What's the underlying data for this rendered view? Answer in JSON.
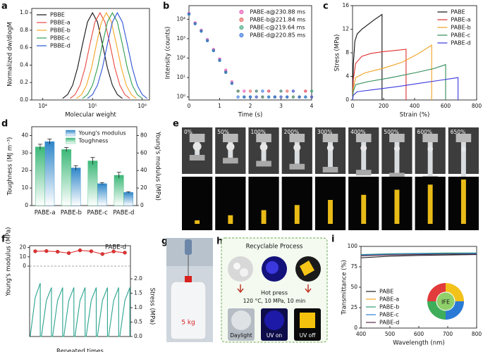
{
  "chart_data": [
    {
      "panel": "a",
      "type": "line",
      "x_label": "Molecular weight",
      "y_label": "Normalized dw/dlogM",
      "xscale": "log",
      "xlim": [
        6000,
        1400000
      ],
      "xticks": [
        {
          "value": 10000,
          "label": "10⁴"
        },
        {
          "value": 100000,
          "label": "10⁵"
        },
        {
          "value": 1000000,
          "label": "10⁶"
        }
      ],
      "ylim": [
        0,
        1.05
      ],
      "yticks": [
        {
          "value": 0,
          "label": "0.0"
        },
        0.2,
        0.4,
        0.6,
        0.8,
        {
          "value": 1,
          "label": "1.0"
        }
      ],
      "legend": "upper-left",
      "series": [
        {
          "name": "PBBE",
          "color": "#111111",
          "x": [
            25100,
            31600,
            39800,
            50100,
            63100,
            79400,
            100000,
            125900,
            158500,
            199500,
            251200,
            316200,
            398100
          ],
          "values": [
            0.018,
            0.062,
            0.169,
            0.368,
            0.641,
            0.895,
            1,
            0.895,
            0.641,
            0.368,
            0.169,
            0.062,
            0.018
          ]
        },
        {
          "name": "PBBE-a",
          "color": "#e8473f",
          "x": [
            35500,
            44700,
            56200,
            70800,
            89100,
            112200,
            141300,
            177800,
            223900,
            281800,
            354800,
            446700,
            562300
          ],
          "values": [
            0.018,
            0.062,
            0.169,
            0.368,
            0.641,
            0.895,
            1,
            0.895,
            0.641,
            0.368,
            0.169,
            0.062,
            0.018
          ]
        },
        {
          "name": "PBBE-b",
          "color": "#f5a623",
          "x": [
            47900,
            60300,
            75900,
            95500,
            120200,
            151400,
            190500,
            239900,
            302000,
            380200,
            478600,
            602600,
            758600
          ],
          "values": [
            0.018,
            0.062,
            0.169,
            0.368,
            0.641,
            0.895,
            1,
            0.895,
            0.641,
            0.368,
            0.169,
            0.062,
            0.018
          ]
        },
        {
          "name": "PBBE-c",
          "color": "#2e9e4f",
          "x": [
            63100,
            79400,
            100000,
            125900,
            158500,
            199500,
            251200,
            316200,
            398100,
            501200,
            631000,
            794300,
            1000000
          ],
          "values": [
            0.018,
            0.062,
            0.169,
            0.368,
            0.641,
            0.895,
            1,
            0.895,
            0.641,
            0.368,
            0.169,
            0.062,
            0.018
          ]
        },
        {
          "name": "PBBE-d",
          "color": "#2c55d6",
          "x": [
            79400,
            100000,
            125900,
            158500,
            199500,
            251200,
            316200,
            398100,
            501200,
            631000,
            794300,
            1000000,
            1258900
          ],
          "values": [
            0.018,
            0.062,
            0.169,
            0.368,
            0.641,
            0.895,
            1,
            0.895,
            0.641,
            0.368,
            0.169,
            0.062,
            0.018
          ]
        }
      ]
    },
    {
      "panel": "b",
      "type": "scatter",
      "x_label": "Time (s)",
      "y_label": "Intensity (counts)",
      "x": [
        0,
        0.2,
        0.4,
        0.6,
        0.8,
        1.0,
        1.2,
        1.4,
        1.6,
        1.8,
        2.0,
        2.2,
        2.4,
        2.6,
        2.8,
        3.0,
        3.2,
        3.4,
        3.6,
        3.8,
        4.0
      ],
      "xlim": [
        0,
        4
      ],
      "xticks": [
        0,
        1,
        2,
        3,
        4
      ],
      "yscale": "log",
      "ylim": [
        0.7,
        50000
      ],
      "yticks": [
        {
          "value": 1,
          "label": "10⁰"
        },
        {
          "value": 10,
          "label": "10¹"
        },
        {
          "value": 100,
          "label": "10²"
        },
        {
          "value": 1000,
          "label": "10³"
        },
        {
          "value": 10000,
          "label": "10⁴"
        }
      ],
      "legend": "upper-right",
      "series": [
        {
          "name": "PABE-a@230.88 ms",
          "color": "#e64fb0",
          "values": [
            20000,
            6500,
            2700,
            900,
            280,
            90,
            24,
            6,
            2,
            2,
            1,
            2,
            1,
            2,
            1,
            2,
            1,
            2,
            1,
            2,
            1
          ]
        },
        {
          "name": "PABE-b@221.84 ms",
          "color": "#e8605a",
          "values": [
            19000,
            6000,
            2500,
            800,
            250,
            80,
            20,
            5,
            2,
            1,
            2,
            1,
            1,
            2,
            1,
            1,
            2,
            1,
            1,
            2,
            1
          ]
        },
        {
          "name": "PABE-c@219.64 ms",
          "color": "#3aa67a",
          "values": [
            18000,
            5800,
            2400,
            780,
            240,
            75,
            18,
            5,
            2,
            1,
            1,
            2,
            1,
            1,
            1,
            2,
            1,
            1,
            1,
            1,
            2
          ]
        },
        {
          "name": "PABE-d@220.85 ms",
          "color": "#2e6fe0",
          "values": [
            18500,
            5900,
            2450,
            790,
            245,
            78,
            19,
            5,
            1,
            1,
            1,
            1,
            2,
            1,
            1,
            1,
            1,
            2,
            1,
            1,
            1
          ]
        }
      ]
    },
    {
      "panel": "c",
      "type": "line",
      "x_label": "Strain (%)",
      "y_label": "Stress (MPa)",
      "xlim": [
        0,
        800
      ],
      "xticks": [
        0,
        200,
        400,
        600,
        800
      ],
      "ylim": [
        0,
        16
      ],
      "yticks": [
        0,
        4,
        8,
        12,
        16
      ],
      "legend": "upper-right",
      "series": [
        {
          "name": "PABE",
          "color": "#111111",
          "x": [
            0,
            5,
            15,
            30,
            60,
            100,
            140,
            190,
            190
          ],
          "values": [
            0,
            6,
            10,
            11.2,
            12,
            12.8,
            13.6,
            14.5,
            0
          ]
        },
        {
          "name": "PABE-a",
          "color": "#e03030",
          "x": [
            0,
            5,
            20,
            60,
            120,
            200,
            280,
            345,
            345
          ],
          "values": [
            0,
            3.5,
            6.2,
            7.4,
            7.9,
            8.2,
            8.4,
            8.6,
            0
          ]
        },
        {
          "name": "PABE-b",
          "color": "#f0a020",
          "x": [
            0,
            5,
            20,
            80,
            200,
            320,
            420,
            510,
            510
          ],
          "values": [
            0,
            2,
            3.8,
            4.6,
            5.4,
            6.4,
            7.8,
            9.3,
            0
          ]
        },
        {
          "name": "PABE-c",
          "color": "#2e8b57",
          "x": [
            0,
            5,
            20,
            100,
            250,
            400,
            520,
            600,
            600
          ],
          "values": [
            0,
            1.5,
            2.6,
            3.1,
            3.8,
            4.6,
            5.3,
            6,
            0
          ]
        },
        {
          "name": "PABE-d",
          "color": "#3a3adf",
          "x": [
            0,
            5,
            30,
            150,
            300,
            450,
            580,
            680,
            680
          ],
          "values": [
            0,
            0.8,
            1.4,
            1.8,
            2.3,
            2.9,
            3.4,
            3.8,
            0
          ]
        }
      ]
    },
    {
      "panel": "d",
      "type": "bar",
      "y_label": "Toughness (MJ m⁻³)",
      "y2_label": "Young's modulus (MPa)",
      "categories": [
        "PABE-a",
        "PABE-b",
        "PABE-c",
        "PABE-d"
      ],
      "ylim": [
        0,
        45
      ],
      "yticks": [
        0,
        10,
        20,
        30,
        40
      ],
      "y2lim": [
        0,
        90
      ],
      "y2ticks": [
        0,
        20,
        40,
        60,
        80
      ],
      "legend": "upper-right",
      "series": [
        {
          "name": "Young's modulus",
          "color": "#2e86c9",
          "axis": "y2",
          "values": [
            73,
            43,
            25,
            15
          ],
          "errors": [
            3,
            2.5,
            1.2,
            0.8
          ]
        },
        {
          "name": "Toughness",
          "color": "#3cb878",
          "values": [
            33.5,
            32,
            25.5,
            17.3
          ],
          "errors": [
            1.5,
            1.2,
            2,
            1.7
          ]
        }
      ]
    },
    {
      "panel": "f",
      "type": "line",
      "x_label": "Repeated times",
      "y_label": "Young's modulus (MPa)",
      "y2_label": "Stress (MPa)",
      "annotation": "PABE-d",
      "xlim": [
        0,
        9
      ],
      "ylim": [
        0,
        22
      ],
      "yticks": [
        0,
        10,
        20
      ],
      "y2lim": [
        0,
        2.1
      ],
      "y2ticks": [
        {
          "value": 0,
          "label": "0.0"
        },
        0.5,
        {
          "value": 1,
          "label": "1.0"
        },
        1.5,
        {
          "value": 2,
          "label": "2.0"
        }
      ],
      "series": [
        {
          "color": "#e33333",
          "markers": true,
          "x": [
            0.5,
            1.5,
            2.5,
            3.5,
            4.5,
            5.5,
            6.5,
            7.5,
            8.5
          ],
          "values": [
            16,
            16.2,
            15.5,
            14,
            17,
            16,
            13,
            15.8,
            14.5
          ]
        },
        {
          "color": "#2aa38f",
          "axis": "y2",
          "x": [
            0.05,
            0.5,
            0.95,
            0.95,
            1.05,
            1.5,
            1.95,
            1.95,
            2.05,
            2.5,
            2.95,
            2.95,
            3.05,
            3.5,
            3.95,
            3.95,
            4.05,
            4.5,
            4.95,
            4.95,
            5.05,
            5.5,
            5.95,
            5.95,
            6.05,
            6.5,
            6.95,
            6.95,
            7.05,
            7.5,
            7.95,
            7.95,
            8.05,
            8.5,
            8.95,
            8.95
          ],
          "values": [
            0,
            1.35,
            1.85,
            0,
            0,
            1.25,
            1.7,
            0,
            0,
            1.25,
            1.7,
            0,
            0,
            1.25,
            1.7,
            0,
            0,
            1.25,
            1.7,
            0,
            0,
            1.25,
            1.7,
            0,
            0,
            1.25,
            1.7,
            0,
            0,
            1.25,
            1.7,
            0,
            0,
            1.25,
            1.7,
            0
          ]
        }
      ]
    },
    {
      "panel": "i",
      "type": "line",
      "x_label": "Wavelength (nm)",
      "y_label": "Transmittance (%)",
      "annotation": "IFE",
      "x": [
        400,
        500,
        600,
        700,
        800
      ],
      "xlim": [
        400,
        800
      ],
      "xticks": [
        400,
        500,
        600,
        700,
        800
      ],
      "ylim": [
        0,
        100
      ],
      "yticks": [
        0,
        25,
        50,
        75,
        100
      ],
      "legend": "lower-left",
      "series": [
        {
          "name": "PABE",
          "color": "#222222",
          "values": [
            86,
            88,
            89,
            89.5,
            90
          ]
        },
        {
          "name": "PABE-a",
          "color": "#f5a623",
          "values": [
            89,
            90,
            90.5,
            91,
            91
          ]
        },
        {
          "name": "PABE-b",
          "color": "#2e9e6f",
          "values": [
            90,
            91,
            91.5,
            92,
            92
          ]
        },
        {
          "name": "PABE-c",
          "color": "#2c7fd6",
          "values": [
            89.5,
            90.5,
            91,
            91,
            91.5
          ]
        },
        {
          "name": "PABE-d",
          "color": "#5b2a4a",
          "values": [
            88.5,
            89.5,
            90,
            90.5,
            90.5
          ]
        }
      ]
    }
  ],
  "photo_panels": [
    {
      "panel": "e",
      "labels": [
        "0%",
        "50%",
        "100%",
        "200%",
        "300%",
        "400%",
        "500%",
        "600%",
        "650%"
      ]
    },
    {
      "panel": "g",
      "label": "5 kg"
    },
    {
      "panel": "h",
      "title": "Recyclable Process",
      "step": "Hot press",
      "conditions": "120 °C, 10 MPa, 10 min",
      "captions": [
        "Daylight",
        "UV on",
        "UV off"
      ]
    }
  ]
}
